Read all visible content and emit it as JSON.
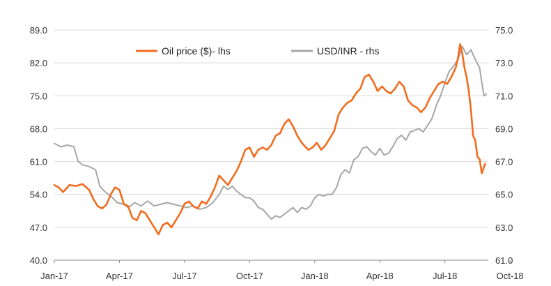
{
  "chart_data": {
    "type": "line",
    "title": "",
    "xlabel": "",
    "ylabel": "",
    "x_ticks": [
      "Jan-17",
      "Apr-17",
      "Jul-17",
      "Oct-17",
      "Jan-18",
      "Apr-18",
      "Jul-18",
      "Oct-18"
    ],
    "ylim_left": [
      40,
      89
    ],
    "ylim_right": [
      61,
      75
    ],
    "yticks_left": [
      "89.0",
      "82.0",
      "75.0",
      "68.0",
      "61.0",
      "54.0",
      "47.0",
      "40.0"
    ],
    "yticks_right": [
      "75.0",
      "73.0",
      "71.0",
      "69.0",
      "67.0",
      "65.0",
      "63.0",
      "61.0"
    ],
    "grid": true,
    "legend_position": "top",
    "series": [
      {
        "name": "Oil price ($)- lhs",
        "axis": "left",
        "color": "#f26b1d",
        "points": [
          [
            0.0,
            56.0
          ],
          [
            0.2,
            55.5
          ],
          [
            0.4,
            54.5
          ],
          [
            0.7,
            56.0
          ],
          [
            1.0,
            55.8
          ],
          [
            1.3,
            56.2
          ],
          [
            1.6,
            55.0
          ],
          [
            1.8,
            53.0
          ],
          [
            2.0,
            51.5
          ],
          [
            2.2,
            51.0
          ],
          [
            2.4,
            51.8
          ],
          [
            2.6,
            54.0
          ],
          [
            2.8,
            55.5
          ],
          [
            3.0,
            55.0
          ],
          [
            3.2,
            52.0
          ],
          [
            3.4,
            51.5
          ],
          [
            3.6,
            49.0
          ],
          [
            3.8,
            48.5
          ],
          [
            4.0,
            50.5
          ],
          [
            4.2,
            50.0
          ],
          [
            4.4,
            48.5
          ],
          [
            4.6,
            47.0
          ],
          [
            4.8,
            45.5
          ],
          [
            5.0,
            47.5
          ],
          [
            5.2,
            48.0
          ],
          [
            5.4,
            47.0
          ],
          [
            5.6,
            48.5
          ],
          [
            5.8,
            50.0
          ],
          [
            6.0,
            52.0
          ],
          [
            6.2,
            52.5
          ],
          [
            6.4,
            51.5
          ],
          [
            6.6,
            51.0
          ],
          [
            6.8,
            52.5
          ],
          [
            7.0,
            52.0
          ],
          [
            7.2,
            53.5
          ],
          [
            7.4,
            55.5
          ],
          [
            7.6,
            58.0
          ],
          [
            7.8,
            57.0
          ],
          [
            8.0,
            56.0
          ],
          [
            8.2,
            57.5
          ],
          [
            8.4,
            59.0
          ],
          [
            8.6,
            61.0
          ],
          [
            8.8,
            63.5
          ],
          [
            9.0,
            64.0
          ],
          [
            9.2,
            62.0
          ],
          [
            9.4,
            63.5
          ],
          [
            9.6,
            64.0
          ],
          [
            9.8,
            63.5
          ],
          [
            10.0,
            64.5
          ],
          [
            10.2,
            66.5
          ],
          [
            10.4,
            67.0
          ],
          [
            10.6,
            69.0
          ],
          [
            10.8,
            70.0
          ],
          [
            11.0,
            68.5
          ],
          [
            11.2,
            66.5
          ],
          [
            11.4,
            65.0
          ],
          [
            11.6,
            64.0
          ],
          [
            11.7,
            63.5
          ],
          [
            11.9,
            64.0
          ],
          [
            12.1,
            65.0
          ],
          [
            12.3,
            63.5
          ],
          [
            12.5,
            64.5
          ],
          [
            12.7,
            66.0
          ],
          [
            12.9,
            67.5
          ],
          [
            13.1,
            71.0
          ],
          [
            13.3,
            72.5
          ],
          [
            13.5,
            73.5
          ],
          [
            13.7,
            74.0
          ],
          [
            13.9,
            75.5
          ],
          [
            14.1,
            76.5
          ],
          [
            14.3,
            79.0
          ],
          [
            14.5,
            79.5
          ],
          [
            14.7,
            78.0
          ],
          [
            14.9,
            76.0
          ],
          [
            15.1,
            77.0
          ],
          [
            15.3,
            76.0
          ],
          [
            15.5,
            75.5
          ],
          [
            15.7,
            76.5
          ],
          [
            15.9,
            78.0
          ],
          [
            16.1,
            77.0
          ],
          [
            16.3,
            74.0
          ],
          [
            16.5,
            73.0
          ],
          [
            16.7,
            72.5
          ],
          [
            16.9,
            71.5
          ],
          [
            17.1,
            72.5
          ],
          [
            17.3,
            74.5
          ],
          [
            17.5,
            76.0
          ],
          [
            17.7,
            77.5
          ],
          [
            17.9,
            78.0
          ],
          [
            18.1,
            77.5
          ],
          [
            18.3,
            79.0
          ],
          [
            18.5,
            81.0
          ],
          [
            18.6,
            83.0
          ],
          [
            18.7,
            86.0
          ],
          [
            18.8,
            84.0
          ],
          [
            18.9,
            81.0
          ],
          [
            19.0,
            79.0
          ],
          [
            19.1,
            76.0
          ],
          [
            19.2,
            72.0
          ],
          [
            19.3,
            66.5
          ],
          [
            19.4,
            65.5
          ],
          [
            19.5,
            62.0
          ],
          [
            19.6,
            61.5
          ],
          [
            19.7,
            58.5
          ],
          [
            19.85,
            60.5
          ]
        ]
      },
      {
        "name": "USD/INR - rhs",
        "axis": "right",
        "color": "#a6a6a6",
        "points": [
          [
            0.0,
            68.1
          ],
          [
            0.3,
            67.9
          ],
          [
            0.6,
            68.0
          ],
          [
            0.9,
            67.9
          ],
          [
            1.1,
            67.0
          ],
          [
            1.3,
            66.8
          ],
          [
            1.6,
            66.7
          ],
          [
            1.9,
            66.5
          ],
          [
            2.1,
            65.5
          ],
          [
            2.3,
            65.2
          ],
          [
            2.6,
            64.9
          ],
          [
            2.9,
            64.5
          ],
          [
            3.2,
            64.4
          ],
          [
            3.4,
            64.2
          ],
          [
            3.7,
            64.5
          ],
          [
            4.0,
            64.3
          ],
          [
            4.3,
            64.6
          ],
          [
            4.6,
            64.3
          ],
          [
            4.9,
            64.4
          ],
          [
            5.2,
            64.5
          ],
          [
            5.5,
            64.4
          ],
          [
            5.8,
            64.3
          ],
          [
            6.1,
            64.2
          ],
          [
            6.4,
            64.3
          ],
          [
            6.7,
            64.1
          ],
          [
            7.0,
            64.2
          ],
          [
            7.3,
            64.5
          ],
          [
            7.6,
            65.0
          ],
          [
            7.8,
            65.5
          ],
          [
            8.0,
            65.3
          ],
          [
            8.2,
            65.5
          ],
          [
            8.4,
            65.2
          ],
          [
            8.6,
            65.0
          ],
          [
            8.8,
            64.8
          ],
          [
            9.0,
            64.8
          ],
          [
            9.2,
            64.6
          ],
          [
            9.4,
            64.2
          ],
          [
            9.6,
            64.1
          ],
          [
            9.8,
            63.8
          ],
          [
            10.0,
            63.5
          ],
          [
            10.2,
            63.7
          ],
          [
            10.4,
            63.6
          ],
          [
            10.6,
            63.8
          ],
          [
            10.8,
            64.0
          ],
          [
            11.0,
            64.2
          ],
          [
            11.2,
            63.9
          ],
          [
            11.4,
            64.2
          ],
          [
            11.6,
            64.1
          ],
          [
            11.8,
            64.3
          ],
          [
            12.0,
            64.8
          ],
          [
            12.2,
            65.0
          ],
          [
            12.4,
            64.9
          ],
          [
            12.6,
            65.0
          ],
          [
            12.8,
            65.0
          ],
          [
            13.0,
            65.4
          ],
          [
            13.2,
            66.2
          ],
          [
            13.4,
            66.5
          ],
          [
            13.6,
            66.3
          ],
          [
            13.8,
            67.1
          ],
          [
            14.0,
            67.3
          ],
          [
            14.2,
            67.8
          ],
          [
            14.4,
            67.9
          ],
          [
            14.6,
            67.6
          ],
          [
            14.8,
            67.4
          ],
          [
            15.0,
            67.8
          ],
          [
            15.2,
            67.4
          ],
          [
            15.4,
            67.5
          ],
          [
            15.6,
            67.9
          ],
          [
            15.8,
            68.4
          ],
          [
            16.0,
            68.6
          ],
          [
            16.2,
            68.3
          ],
          [
            16.4,
            68.8
          ],
          [
            16.6,
            68.9
          ],
          [
            16.8,
            69.0
          ],
          [
            17.0,
            68.8
          ],
          [
            17.2,
            69.2
          ],
          [
            17.4,
            69.6
          ],
          [
            17.6,
            70.4
          ],
          [
            17.8,
            71.0
          ],
          [
            18.0,
            71.8
          ],
          [
            18.2,
            72.5
          ],
          [
            18.4,
            72.8
          ],
          [
            18.6,
            73.2
          ],
          [
            18.8,
            74.0
          ],
          [
            19.0,
            73.5
          ],
          [
            19.2,
            73.8
          ],
          [
            19.4,
            73.2
          ],
          [
            19.6,
            72.7
          ],
          [
            19.7,
            71.8
          ],
          [
            19.8,
            71.0
          ],
          [
            19.9,
            71.1
          ]
        ]
      }
    ]
  }
}
